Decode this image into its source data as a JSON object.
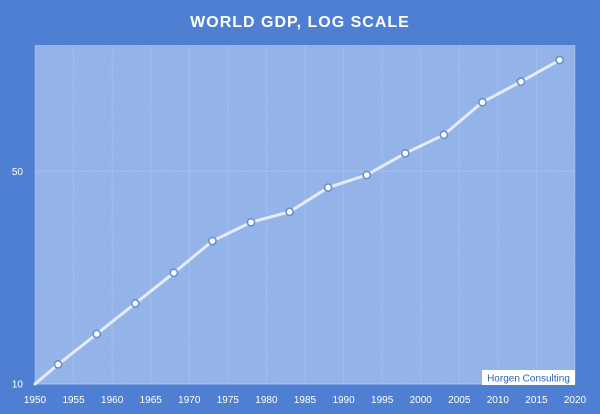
{
  "chart_data": {
    "type": "line",
    "title": "WORLD GDP, LOG SCALE",
    "xlabel": "",
    "ylabel": "",
    "x_scale": "linear",
    "y_scale": "log",
    "xlim": [
      1950,
      2020
    ],
    "ylim": [
      10,
      130
    ],
    "x_ticks": [
      "1950",
      "1955",
      "1960",
      "1965",
      "1970",
      "1975",
      "1980",
      "1985",
      "1990",
      "1995",
      "2000",
      "2005",
      "2010",
      "2015",
      "2020"
    ],
    "y_ticks": [
      "10",
      "50"
    ],
    "grid": true,
    "legend": "none",
    "watermark": "Horgen Consulting",
    "series": [
      {
        "x": [
          1953,
          1958,
          1963,
          1968,
          1973,
          1978,
          1983,
          1988,
          1993,
          1998,
          2003,
          2008,
          2013,
          2018
        ],
        "y": [
          11.6,
          14.6,
          18.4,
          23.2,
          29.5,
          34.0,
          36.8,
          44.2,
          48.6,
          57.3,
          65.9,
          84.3,
          98.5,
          116.0
        ]
      }
    ],
    "colors": {
      "background": "#4f7fd3",
      "plot_area": "#8aaee6",
      "line": "#e4ecf8",
      "marker_fill": "#ffffff",
      "marker_stroke": "#6a8fcf",
      "text": "#ffffff",
      "grid": "#b3c9ef"
    }
  }
}
